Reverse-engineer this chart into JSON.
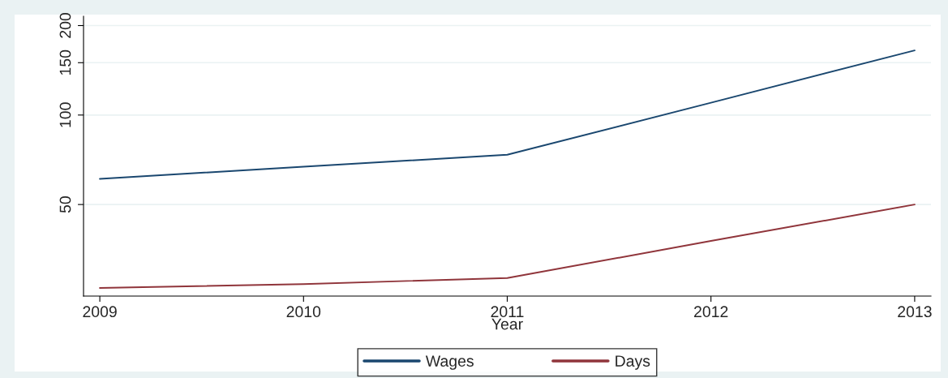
{
  "chart_data": {
    "type": "line",
    "xlabel": "Year",
    "x": [
      2009,
      2010,
      2011,
      2012,
      2013
    ],
    "series": [
      {
        "name": "Wages",
        "color": "#1a476f",
        "values": [
          61,
          67,
          73.5,
          110,
          165
        ]
      },
      {
        "name": "Days",
        "color": "#90353b",
        "values": [
          26.2,
          27,
          28.3,
          37.7,
          50
        ]
      }
    ],
    "log": "y",
    "xlim": [
      2008.92,
      2013.08
    ],
    "xticks": [
      2009,
      2010,
      2011,
      2012,
      2013
    ],
    "ylim": [
      24.6,
      215
    ],
    "yticks": [
      50,
      100,
      150,
      200
    ],
    "grid": "y",
    "legend": "bottom"
  }
}
